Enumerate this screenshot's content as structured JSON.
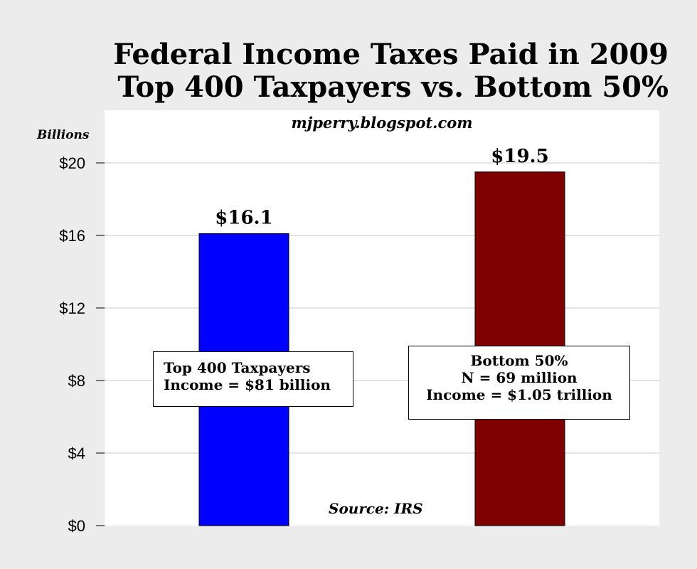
{
  "chart_data": {
    "type": "bar",
    "title": [
      "Federal Income Taxes Paid in 2009",
      "Top 400 Taxpayers vs. Bottom 50%"
    ],
    "watermark": "mjperry.blogspot.com",
    "unit_label": "Billions",
    "source": "Source: IRS",
    "categories": [
      "Top 400 Taxpayers",
      "Bottom 50%"
    ],
    "values": [
      16.1,
      19.5
    ],
    "value_labels": [
      "$16.1",
      "$19.5"
    ],
    "bar_colors": [
      "#0000ff",
      "#7f0000"
    ],
    "ylim": [
      0,
      23
    ],
    "yticks": [
      0,
      4,
      8,
      12,
      16,
      20
    ],
    "ytick_labels": [
      "$0",
      "$4",
      "$8",
      "$12",
      "$16",
      "$20"
    ],
    "grid": true,
    "annotations": [
      [
        "Top 400 Taxpayers",
        "Income = $81 billion"
      ],
      [
        "Bottom 50%",
        "N = 69 million",
        "Income = $1.05 trillion"
      ]
    ]
  }
}
